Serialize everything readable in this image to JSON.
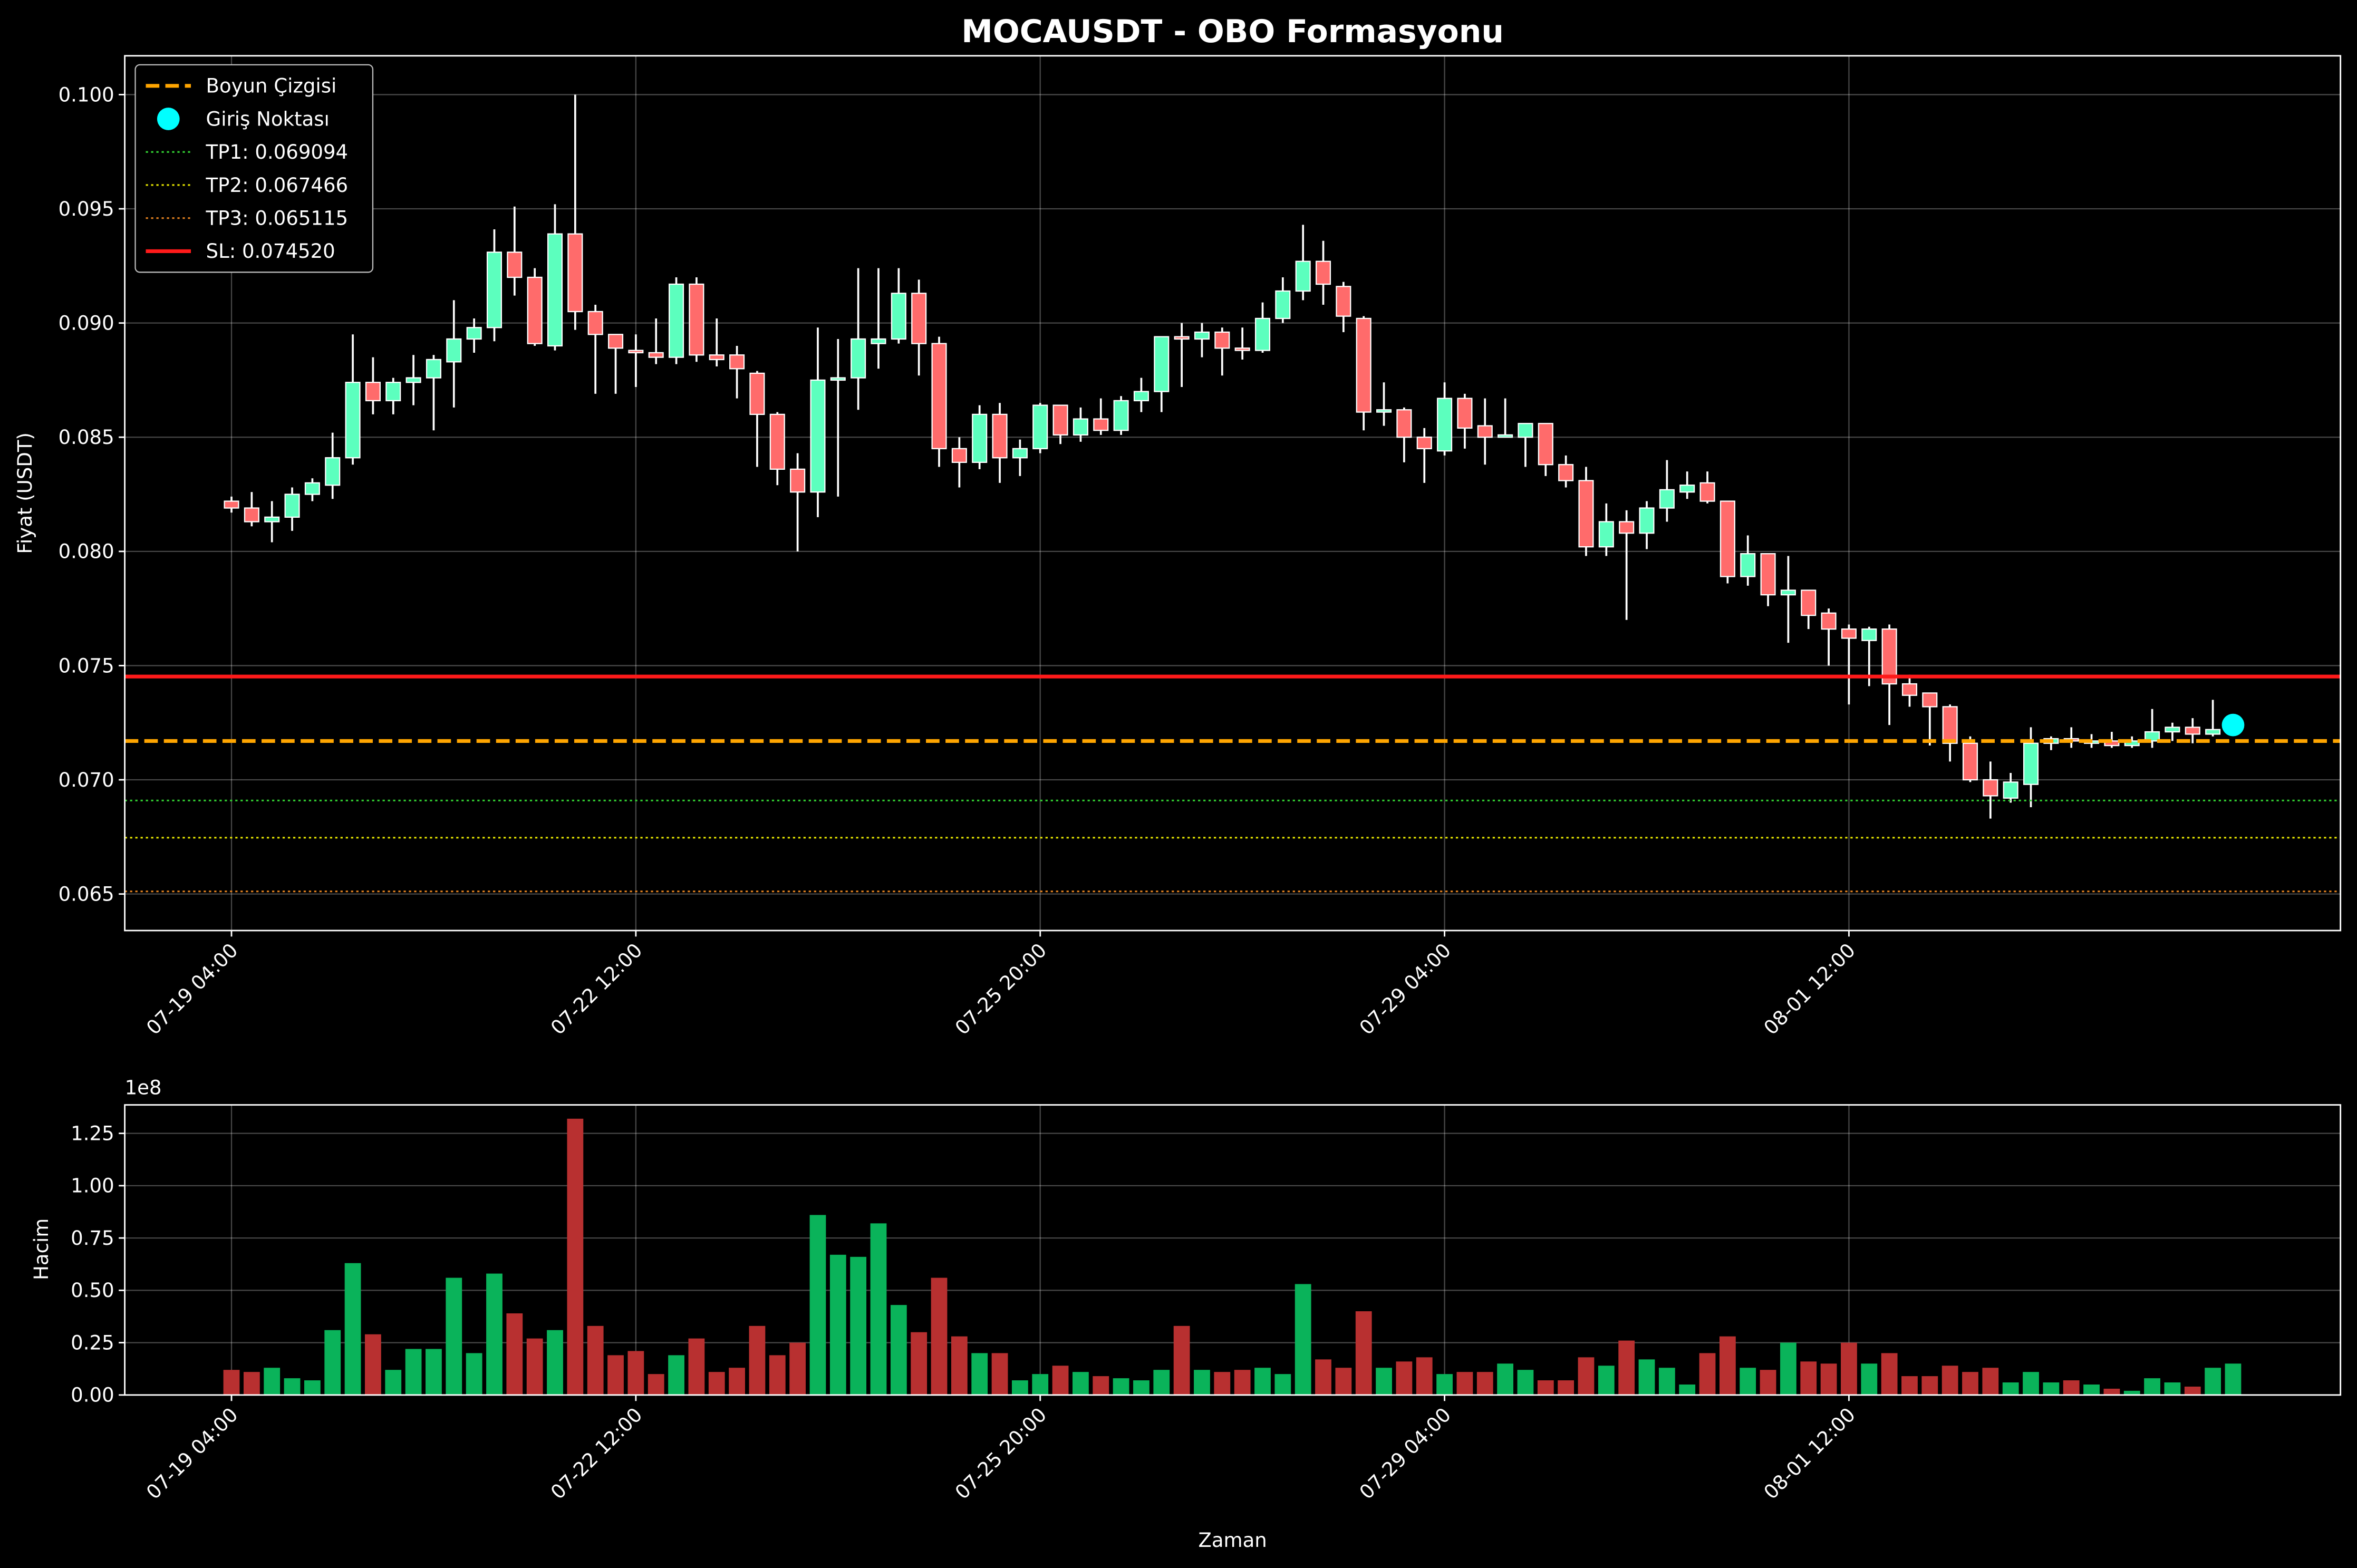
{
  "chart_data": {
    "type": "candlestick",
    "title": "MOCAUSDT - OBO Formasyonu",
    "xlabel": "Zaman",
    "ylabel": "Fiyat (USDT)",
    "volume_ylabel": "Hacim",
    "volume_offset_label": "1e8",
    "x": [
      "07-19 04:00",
      "07-19 08:00",
      "07-19 12:00",
      "07-19 16:00",
      "07-19 20:00",
      "07-20 00:00",
      "07-20 04:00",
      "07-20 08:00",
      "07-20 12:00",
      "07-20 16:00",
      "07-20 20:00",
      "07-21 00:00",
      "07-21 04:00",
      "07-21 08:00",
      "07-21 12:00",
      "07-21 16:00",
      "07-21 20:00",
      "07-22 00:00",
      "07-22 04:00",
      "07-22 08:00",
      "07-22 12:00",
      "07-22 16:00",
      "07-22 20:00",
      "07-23 00:00",
      "07-23 04:00",
      "07-23 08:00",
      "07-23 12:00",
      "07-23 16:00",
      "07-23 20:00",
      "07-24 00:00",
      "07-24 04:00",
      "07-24 08:00",
      "07-24 12:00",
      "07-24 16:00",
      "07-24 20:00",
      "07-25 00:00",
      "07-25 04:00",
      "07-25 08:00",
      "07-25 12:00",
      "07-25 16:00",
      "07-25 20:00",
      "07-26 00:00",
      "07-26 04:00",
      "07-26 08:00",
      "07-26 12:00",
      "07-26 16:00",
      "07-26 20:00",
      "07-27 00:00",
      "07-27 04:00",
      "07-27 08:00",
      "07-27 12:00",
      "07-27 16:00",
      "07-27 20:00",
      "07-28 00:00",
      "07-28 04:00",
      "07-28 08:00",
      "07-28 12:00",
      "07-28 16:00",
      "07-28 20:00",
      "07-29 00:00",
      "07-29 04:00",
      "07-29 08:00",
      "07-29 12:00",
      "07-29 16:00",
      "07-29 20:00",
      "07-30 00:00",
      "07-30 04:00",
      "07-30 08:00",
      "07-30 12:00",
      "07-30 16:00",
      "07-30 20:00",
      "07-31 00:00",
      "07-31 04:00",
      "07-31 08:00",
      "07-31 12:00",
      "07-31 16:00",
      "07-31 20:00",
      "08-01 00:00",
      "08-01 04:00",
      "08-01 08:00",
      "08-01 12:00",
      "08-01 16:00",
      "08-01 20:00",
      "08-02 00:00",
      "08-02 04:00",
      "08-02 08:00",
      "08-02 12:00",
      "08-02 16:00",
      "08-02 20:00",
      "08-03 00:00",
      "08-03 04:00",
      "08-03 08:00",
      "08-03 12:00",
      "08-03 16:00",
      "08-03 20:00",
      "08-04 00:00",
      "08-04 04:00",
      "08-04 08:00",
      "08-04 12:00",
      "08-04 16:00"
    ],
    "open": [
      0.0822,
      0.0819,
      0.0813,
      0.0815,
      0.0825,
      0.0829,
      0.0841,
      0.0874,
      0.0866,
      0.0874,
      0.0876,
      0.0883,
      0.0893,
      0.0898,
      0.0931,
      0.092,
      0.089,
      0.0939,
      0.0905,
      0.0895,
      0.0888,
      0.0887,
      0.0885,
      0.0917,
      0.0886,
      0.0886,
      0.0878,
      0.086,
      0.0836,
      0.0826,
      0.0875,
      0.0876,
      0.0891,
      0.0893,
      0.0913,
      0.0891,
      0.0845,
      0.0839,
      0.086,
      0.0841,
      0.0845,
      0.0864,
      0.0851,
      0.0858,
      0.0853,
      0.0866,
      0.087,
      0.0894,
      0.0893,
      0.0896,
      0.0889,
      0.0888,
      0.0902,
      0.0914,
      0.0927,
      0.0916,
      0.0902,
      0.0861,
      0.0862,
      0.085,
      0.0844,
      0.0867,
      0.0855,
      0.085,
      0.085,
      0.0856,
      0.0838,
      0.0831,
      0.0802,
      0.0813,
      0.0808,
      0.0819,
      0.0826,
      0.083,
      0.0822,
      0.0789,
      0.0799,
      0.0781,
      0.0783,
      0.0773,
      0.0766,
      0.0761,
      0.0766,
      0.0742,
      0.0738,
      0.0732,
      0.0716,
      0.07,
      0.0692,
      0.0698,
      0.0716,
      0.0718,
      0.0716,
      0.0717,
      0.0715,
      0.0717,
      0.0721,
      0.0723,
      0.072,
      0.0722
    ],
    "high": [
      0.0824,
      0.0826,
      0.0822,
      0.0828,
      0.0832,
      0.0852,
      0.0895,
      0.0885,
      0.0876,
      0.0886,
      0.0886,
      0.091,
      0.0902,
      0.0941,
      0.0951,
      0.0924,
      0.0952,
      0.1,
      0.0908,
      0.0895,
      0.0895,
      0.0902,
      0.092,
      0.092,
      0.0902,
      0.089,
      0.0879,
      0.0861,
      0.0843,
      0.0898,
      0.0893,
      0.0924,
      0.0924,
      0.0924,
      0.0919,
      0.0894,
      0.085,
      0.0864,
      0.0865,
      0.0849,
      0.0865,
      0.0864,
      0.0863,
      0.0867,
      0.0868,
      0.0876,
      0.0894,
      0.09,
      0.09,
      0.0898,
      0.0898,
      0.0909,
      0.092,
      0.0943,
      0.0936,
      0.0918,
      0.0903,
      0.0874,
      0.0863,
      0.0854,
      0.0874,
      0.0869,
      0.0867,
      0.0867,
      0.0856,
      0.0856,
      0.0842,
      0.0837,
      0.0821,
      0.0818,
      0.0822,
      0.084,
      0.0835,
      0.0835,
      0.0822,
      0.0807,
      0.0799,
      0.0798,
      0.0783,
      0.0775,
      0.0768,
      0.0767,
      0.0768,
      0.0746,
      0.0738,
      0.0733,
      0.0719,
      0.0708,
      0.0703,
      0.0723,
      0.0719,
      0.0723,
      0.072,
      0.0721,
      0.0719,
      0.0731,
      0.0725,
      0.0727,
      0.0735,
      0.0726
    ],
    "low": [
      0.0817,
      0.0811,
      0.0804,
      0.0809,
      0.0822,
      0.0823,
      0.0838,
      0.086,
      0.086,
      0.0864,
      0.0853,
      0.0863,
      0.0887,
      0.0892,
      0.0912,
      0.089,
      0.0888,
      0.0897,
      0.0869,
      0.0869,
      0.0872,
      0.0882,
      0.0882,
      0.0883,
      0.0881,
      0.0867,
      0.0837,
      0.0829,
      0.08,
      0.0815,
      0.0824,
      0.0862,
      0.088,
      0.0891,
      0.0877,
      0.0837,
      0.0828,
      0.0836,
      0.083,
      0.0833,
      0.0843,
      0.0847,
      0.0848,
      0.0851,
      0.0851,
      0.0861,
      0.0861,
      0.0872,
      0.0885,
      0.0877,
      0.0884,
      0.0887,
      0.09,
      0.091,
      0.0908,
      0.0896,
      0.0853,
      0.0855,
      0.0839,
      0.083,
      0.0842,
      0.0845,
      0.0838,
      0.085,
      0.0837,
      0.0833,
      0.0828,
      0.0798,
      0.0798,
      0.077,
      0.0801,
      0.0813,
      0.0823,
      0.0821,
      0.0786,
      0.0785,
      0.0776,
      0.076,
      0.0766,
      0.075,
      0.0733,
      0.0741,
      0.0724,
      0.0732,
      0.0715,
      0.0708,
      0.0699,
      0.0683,
      0.069,
      0.0688,
      0.0713,
      0.0714,
      0.0714,
      0.0714,
      0.0714,
      0.0714,
      0.0717,
      0.0716,
      0.0719,
      0.0721
    ],
    "close": [
      0.0819,
      0.0813,
      0.0815,
      0.0825,
      0.083,
      0.0841,
      0.0874,
      0.0866,
      0.0874,
      0.0876,
      0.0884,
      0.0893,
      0.0898,
      0.0931,
      0.092,
      0.0891,
      0.0939,
      0.0905,
      0.0895,
      0.0889,
      0.0887,
      0.0885,
      0.0917,
      0.0886,
      0.0884,
      0.088,
      0.086,
      0.0836,
      0.0826,
      0.0875,
      0.0876,
      0.0893,
      0.0893,
      0.0913,
      0.0891,
      0.0845,
      0.0839,
      0.086,
      0.0841,
      0.0845,
      0.0864,
      0.0851,
      0.0858,
      0.0853,
      0.0866,
      0.087,
      0.0894,
      0.0893,
      0.0896,
      0.0889,
      0.0888,
      0.0902,
      0.0914,
      0.0927,
      0.0917,
      0.0903,
      0.0861,
      0.0862,
      0.085,
      0.0845,
      0.0867,
      0.0854,
      0.085,
      0.0851,
      0.0856,
      0.0838,
      0.0831,
      0.0802,
      0.0813,
      0.0808,
      0.0819,
      0.0827,
      0.0829,
      0.0822,
      0.0789,
      0.0799,
      0.0781,
      0.0783,
      0.0772,
      0.0766,
      0.0762,
      0.0766,
      0.0742,
      0.0737,
      0.0732,
      0.0716,
      0.07,
      0.0693,
      0.0699,
      0.0716,
      0.0718,
      0.0717,
      0.0717,
      0.0715,
      0.0717,
      0.0721,
      0.0723,
      0.072,
      0.0722,
      0.0724
    ],
    "volume": [
      12000000,
      11000000,
      13000000,
      8000000,
      7000000,
      31000000,
      63000000,
      29000000,
      12000000,
      22000000,
      22000000,
      56000000,
      20000000,
      58000000,
      39000000,
      27000000,
      31000000,
      132000000,
      33000000,
      19000000,
      21000000,
      10000000,
      19000000,
      27000000,
      11000000,
      13000000,
      33000000,
      19000000,
      25000000,
      86000000,
      67000000,
      66000000,
      82000000,
      43000000,
      30000000,
      56000000,
      28000000,
      20000000,
      20000000,
      7000000,
      10000000,
      14000000,
      11000000,
      9000000,
      8000000,
      7000000,
      12000000,
      33000000,
      12000000,
      11000000,
      12000000,
      13000000,
      10000000,
      53000000,
      17000000,
      13000000,
      40000000,
      13000000,
      16000000,
      18000000,
      10000000,
      11000000,
      11000000,
      15000000,
      12000000,
      7000000,
      7000000,
      18000000,
      14000000,
      26000000,
      17000000,
      13000000,
      5000000,
      20000000,
      28000000,
      13000000,
      12000000,
      25000000,
      16000000,
      15000000,
      25000000,
      15000000,
      20000000,
      9000000,
      9000000,
      14000000,
      11000000,
      13000000,
      6000000,
      11000000,
      6000000,
      7000000,
      5000000,
      3000000,
      2000000,
      8000000,
      6000000,
      4000000,
      13000000,
      15000000
    ],
    "xticks": [
      "07-19 04:00",
      "07-22 12:00",
      "07-25 20:00",
      "07-29 04:00",
      "08-01 12:00"
    ],
    "ylim": [
      0.0634,
      0.1017
    ],
    "yticks": [
      0.065,
      {
        "value": 0.07,
        "label": "0.070"
      },
      0.075,
      {
        "value": 0.08,
        "label": "0.080"
      },
      0.085,
      {
        "value": 0.09,
        "label": "0.090"
      },
      0.095,
      {
        "value": 0.1,
        "label": "0.100"
      }
    ],
    "volume_ylim": [
      0,
      138600000
    ],
    "volume_yticks": [
      {
        "value": 0,
        "label": "0.00"
      },
      {
        "value": 25000000,
        "label": "0.25"
      },
      {
        "value": 50000000,
        "label": "0.50"
      },
      {
        "value": 75000000,
        "label": "0.75"
      },
      {
        "value": 100000000,
        "label": "1.00"
      },
      {
        "value": 125000000,
        "label": "1.25"
      }
    ],
    "up_color": "#5cffbe",
    "down_color": "#ff6b6b",
    "volume_up_color": "#0ab35a",
    "volume_down_color": "#b83030",
    "levels": [
      {
        "name": "Boyun Çizgisi",
        "value": 0.0717,
        "color": "#ffa500",
        "style": "dashed"
      },
      {
        "name": "TP1: 0.069094",
        "value": 0.069094,
        "color": "#32cd32",
        "style": "dotted"
      },
      {
        "name": "TP2: 0.067466",
        "value": 0.067466,
        "color": "#e6e600",
        "style": "dotted"
      },
      {
        "name": "TP3: 0.065115",
        "value": 0.065115,
        "color": "#e08020",
        "style": "dotted"
      },
      {
        "name": "SL: 0.074520",
        "value": 0.07452,
        "color": "#ff1a1a",
        "style": "solid"
      }
    ],
    "entry": {
      "name": "Giriş Noktası",
      "x": "08-04 16:00",
      "y": 0.0724,
      "color": "#00ffff"
    },
    "grid": true,
    "legend_loc": "upper left"
  }
}
